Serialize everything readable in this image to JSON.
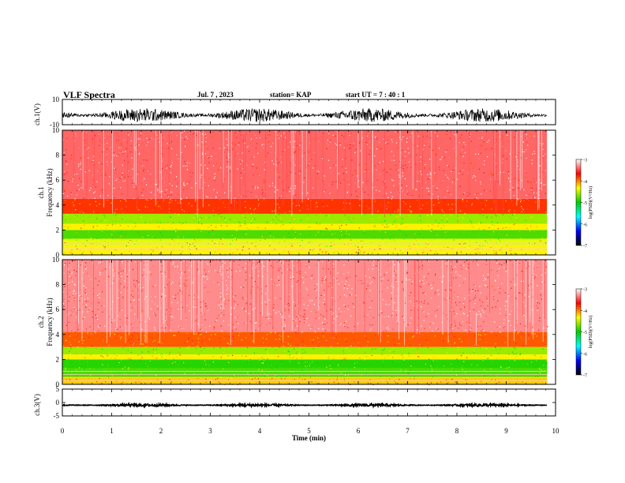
{
  "header": {
    "title": "VLF Spectra",
    "date": "Jul. 7 , 2023",
    "station": "station= KAP",
    "start": "start UT = 7 : 40 : 1"
  },
  "colorbar": {
    "label": "log(PSD)(V²/Hz)",
    "ticks": [
      "-3",
      "-4",
      "-5",
      "-6",
      "-7"
    ],
    "colors": [
      "#ffffff",
      "#ff0000",
      "#ffff00",
      "#00cc00",
      "#00ffff",
      "#0000ff",
      "#000000"
    ]
  },
  "chart_data": [
    {
      "type": "line",
      "panel": "ch.1 waveform",
      "ylabel": "ch.1(V)",
      "ylim": [
        -10,
        10
      ],
      "yticks": [
        "10",
        "-10"
      ],
      "xlim": [
        0,
        10
      ],
      "series": [
        {
          "description": "noisy waveform, roughly between -8 and 3 V",
          "values_range": [
            -8,
            3
          ]
        }
      ]
    },
    {
      "type": "heatmap",
      "panel": "ch.1 spectrogram",
      "ylabel": "ch.1 Frequency (kHz)",
      "ylim": [
        0,
        10
      ],
      "yticks": [
        "0",
        "2",
        "4",
        "6",
        "8",
        "10"
      ],
      "xlim": [
        0,
        10
      ],
      "data_x_range": [
        0,
        9.83
      ],
      "bands": [
        {
          "f_low": 0.0,
          "f_high": 0.7,
          "level": -4.3
        },
        {
          "f_low": 0.7,
          "f_high": 1.3,
          "level": -4.4
        },
        {
          "f_low": 1.3,
          "f_high": 2.0,
          "level": -4.8
        },
        {
          "f_low": 2.0,
          "f_high": 2.5,
          "level": -4.3
        },
        {
          "f_low": 2.5,
          "f_high": 3.3,
          "level": -4.6
        },
        {
          "f_low": 3.3,
          "f_high": 4.5,
          "level": -3.8
        },
        {
          "f_low": 4.5,
          "f_high": 10.0,
          "level": -3.4
        }
      ]
    },
    {
      "type": "heatmap",
      "panel": "ch.2 spectrogram",
      "ylabel": "ch.2 Frequency (kHz)",
      "ylim": [
        0,
        10
      ],
      "yticks": [
        "0",
        "2",
        "4",
        "6",
        "8",
        "10"
      ],
      "xlim": [
        0,
        10
      ],
      "data_x_range": [
        0,
        9.83
      ],
      "bands": [
        {
          "f_low": 0.0,
          "f_high": 0.6,
          "level": -4.2
        },
        {
          "f_low": 0.6,
          "f_high": 1.3,
          "level": -4.8
        },
        {
          "f_low": 1.3,
          "f_high": 2.0,
          "level": -4.9
        },
        {
          "f_low": 2.0,
          "f_high": 2.4,
          "level": -4.3
        },
        {
          "f_low": 2.4,
          "f_high": 3.0,
          "level": -4.6
        },
        {
          "f_low": 3.0,
          "f_high": 4.2,
          "level": -3.9
        },
        {
          "f_low": 4.2,
          "f_high": 10.0,
          "level": -3.3
        }
      ]
    },
    {
      "type": "line",
      "panel": "ch.3 waveform",
      "ylabel": "ch.3(V)",
      "ylim": [
        -5,
        5
      ],
      "yticks": [
        "5",
        "0",
        "-5"
      ],
      "xlim": [
        0,
        10
      ],
      "series": [
        {
          "description": "narrow band of noise around -1 V",
          "values_range": [
            -1.5,
            -0.5
          ]
        }
      ]
    }
  ],
  "xaxis": {
    "label": "Time (min)",
    "ticks": [
      "0",
      "1",
      "2",
      "3",
      "4",
      "5",
      "6",
      "7",
      "8",
      "9",
      "10"
    ]
  }
}
